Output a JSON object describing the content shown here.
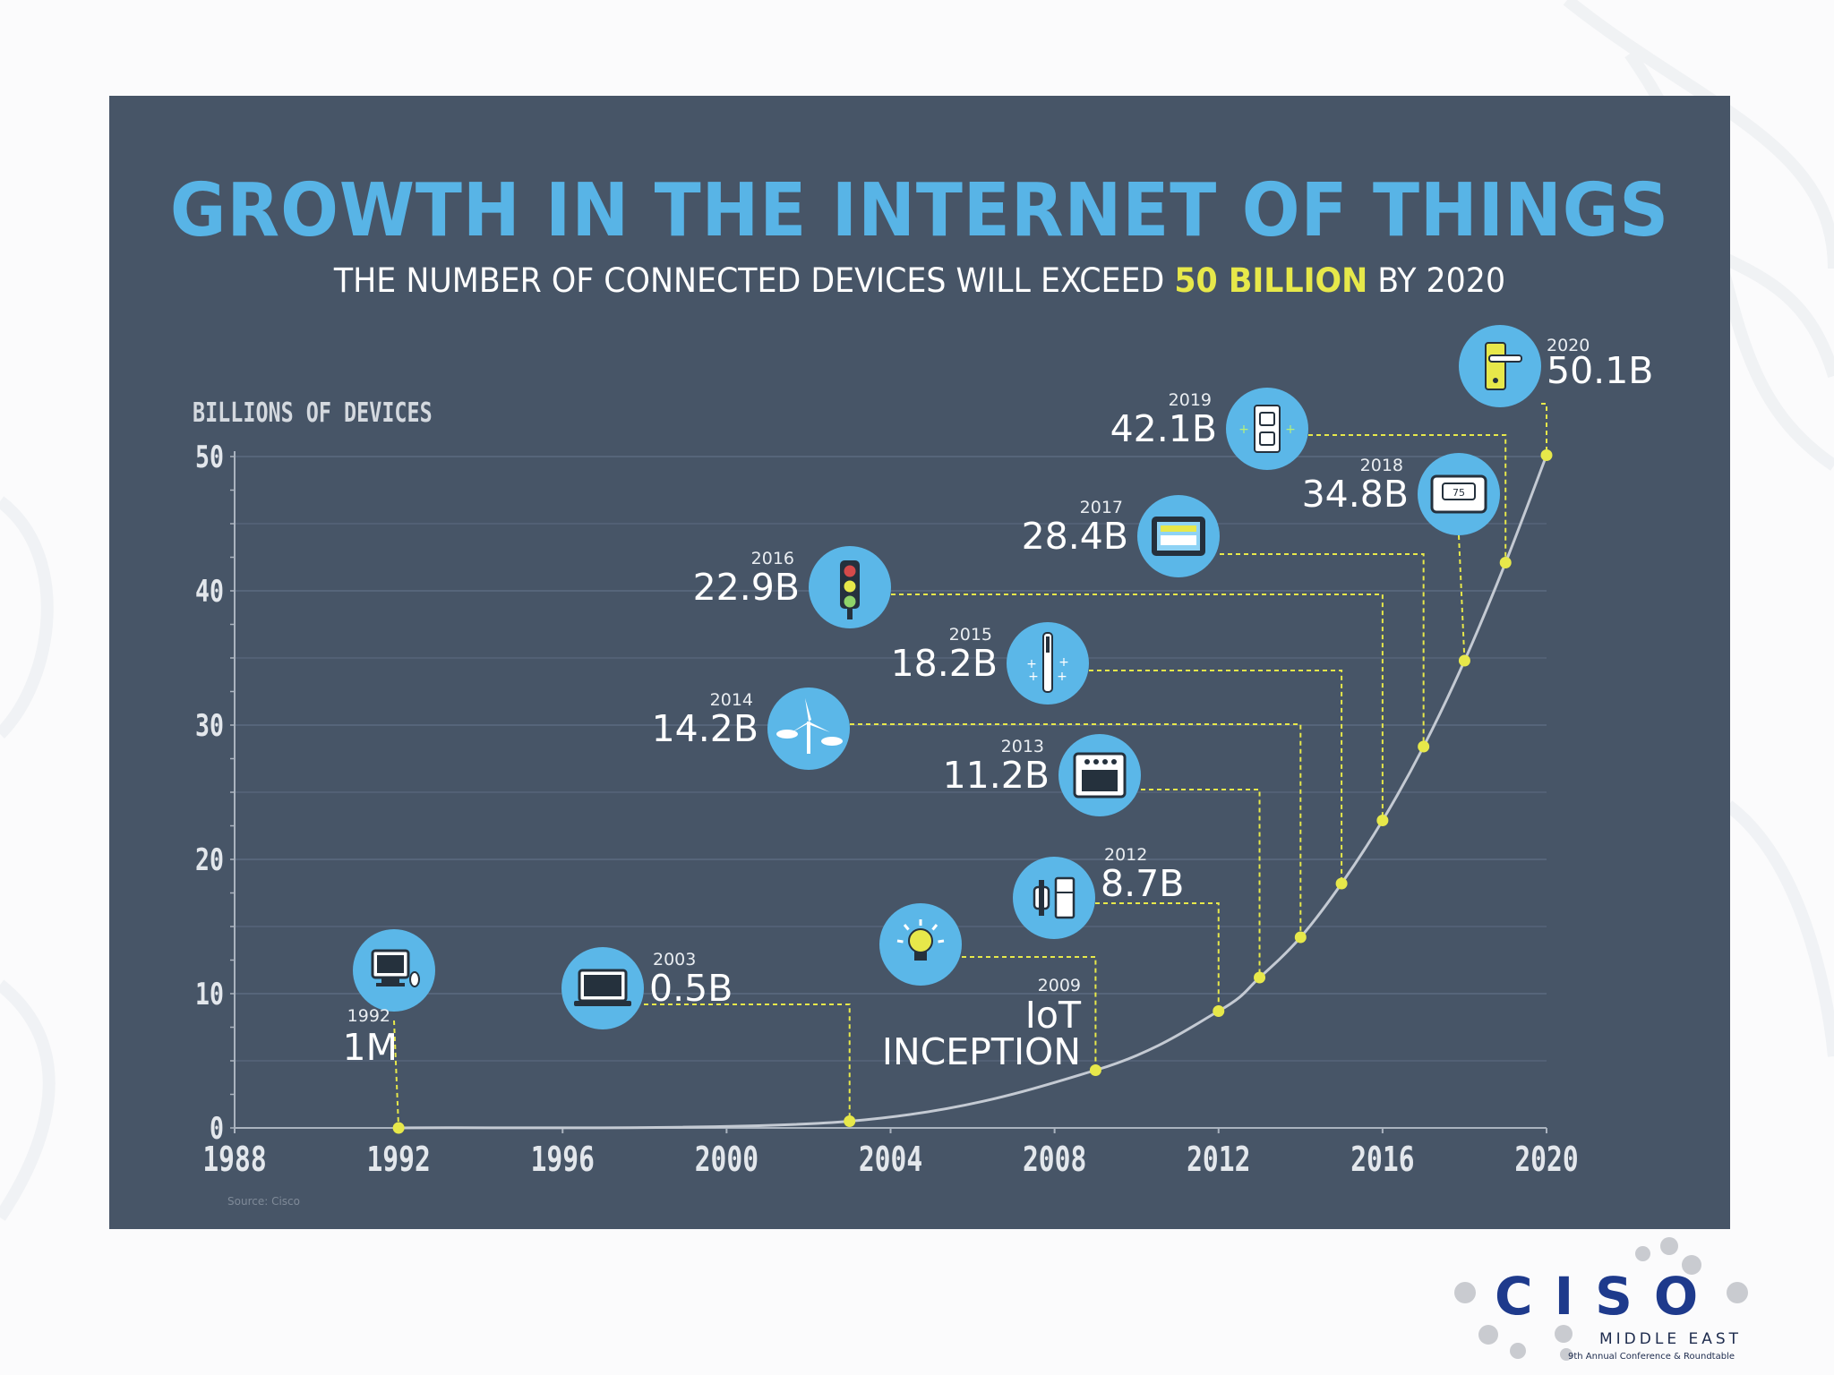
{
  "chart_data": {
    "type": "line",
    "title": "GROWTH IN THE INTERNET OF THINGS",
    "subtitle_prefix": "THE NUMBER OF CONNECTED DEVICES WILL EXCEED ",
    "subtitle_highlight": "50 BILLION",
    "subtitle_suffix": " BY 2020",
    "ylabel": "BILLIONS OF DEVICES",
    "xlim": [
      1988,
      2020
    ],
    "ylim": [
      0,
      50
    ],
    "x_ticks": [
      "1988",
      "1992",
      "1996",
      "2000",
      "2004",
      "2008",
      "2012",
      "2016",
      "2020"
    ],
    "y_ticks": [
      "0",
      "10",
      "20",
      "30",
      "40",
      "50"
    ],
    "grid": true,
    "highlight_color": "#e7e84a",
    "icon_color": "#5bb7e8",
    "series": [
      {
        "points": [
          {
            "year": 1992,
            "value": 0.001,
            "label": "1M",
            "year_label": "1992",
            "icon": "desktop-computer-icon"
          },
          {
            "year": 2003,
            "value": 0.5,
            "label": "0.5B",
            "year_label": "2003",
            "icon": "laptop-icon"
          },
          {
            "year": 2009,
            "value": 4.3,
            "label": "IoT INCEPTION",
            "label_lines": [
              "IoT",
              "INCEPTION"
            ],
            "year_label": "2009",
            "icon": "lightbulb-icon"
          },
          {
            "year": 2012,
            "value": 8.7,
            "label": "8.7B",
            "year_label": "2012",
            "icon": "smartwatch-fridge-icon"
          },
          {
            "year": 2013,
            "value": 11.2,
            "label": "11.2B",
            "year_label": "2013",
            "icon": "oven-icon"
          },
          {
            "year": 2014,
            "value": 14.2,
            "label": "14.2B",
            "year_label": "2014",
            "icon": "wind-turbine-icon"
          },
          {
            "year": 2015,
            "value": 18.2,
            "label": "18.2B",
            "year_label": "2015",
            "icon": "toothbrush-icon"
          },
          {
            "year": 2016,
            "value": 22.9,
            "label": "22.9B",
            "year_label": "2016",
            "icon": "traffic-light-icon"
          },
          {
            "year": 2017,
            "value": 28.4,
            "label": "28.4B",
            "year_label": "2017",
            "icon": "tablet-icon"
          },
          {
            "year": 2018,
            "value": 34.8,
            "label": "34.8B",
            "year_label": "2018",
            "icon": "thermostat-icon"
          },
          {
            "year": 2019,
            "value": 42.1,
            "label": "42.1B",
            "year_label": "2019",
            "icon": "power-outlet-icon"
          },
          {
            "year": 2020,
            "value": 50.1,
            "label": "50.1B",
            "year_label": "2020",
            "icon": "door-handle-icon"
          }
        ]
      }
    ],
    "source": "Source: Cisco"
  },
  "branding": {
    "logo_text": "CISO",
    "logo_subtitle": "MIDDLE EAST",
    "logo_tagline": "9th Annual Conference & Roundtable",
    "logo_color": "#1e3a8c"
  }
}
